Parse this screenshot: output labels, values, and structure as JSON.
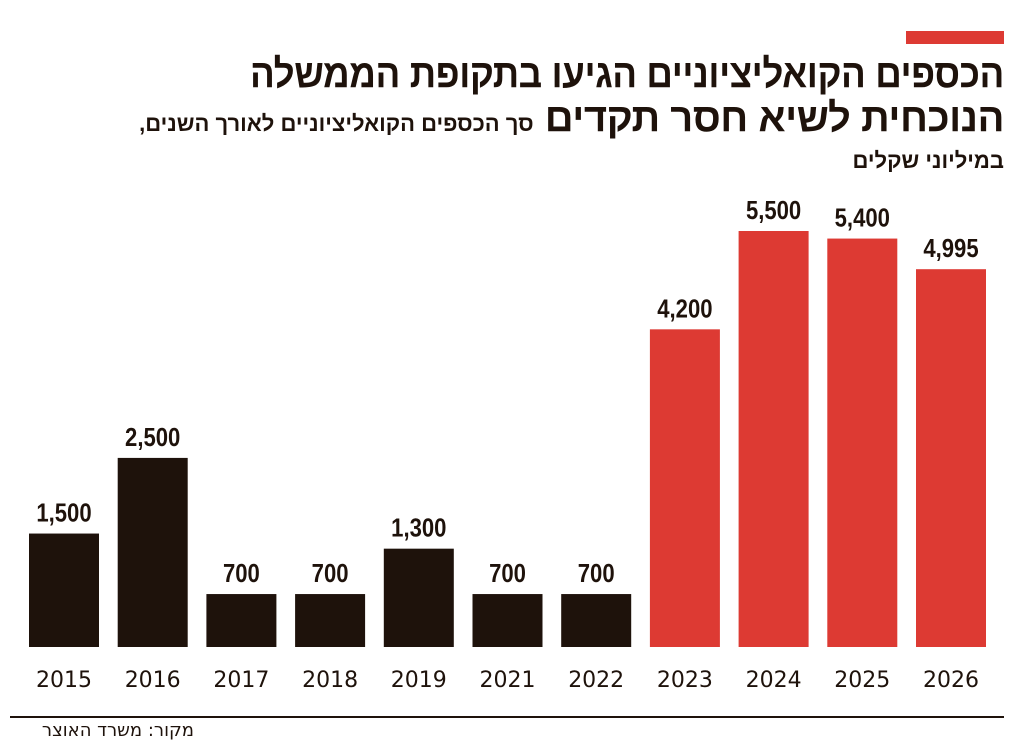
{
  "title_line1": "הכספים הקואליציוניים הגיעו בתקופת הממשלה",
  "title_line2": "הנוכחית לשיא חסר תקדים",
  "subtitle_line1": "סך הכספים הקואליציוניים לאורך השנים,",
  "subtitle_line2": "במיליוני שקלים",
  "source": "מקור: משרד האוצר",
  "colors": {
    "past": "#1e120b",
    "current_government": "#dd3a33",
    "accent": "#dd3a33"
  },
  "chart_data": {
    "type": "bar",
    "categories": [
      "2015",
      "2016",
      "2017",
      "2018",
      "2019",
      "2021",
      "2022",
      "2023",
      "2024",
      "2025",
      "2026"
    ],
    "values": [
      1500,
      2500,
      700,
      700,
      1300,
      700,
      700,
      4200,
      5500,
      5400,
      4995
    ],
    "value_labels": [
      "1,500",
      "2,500",
      "700",
      "700",
      "1,300",
      "700",
      "700",
      "4,200",
      "5,500",
      "5,400",
      "4,995"
    ],
    "bar_colors": [
      "#1e120b",
      "#1e120b",
      "#1e120b",
      "#1e120b",
      "#1e120b",
      "#1e120b",
      "#1e120b",
      "#dd3a33",
      "#dd3a33",
      "#dd3a33",
      "#dd3a33"
    ],
    "ylim": [
      0,
      5500
    ],
    "grid": false
  }
}
